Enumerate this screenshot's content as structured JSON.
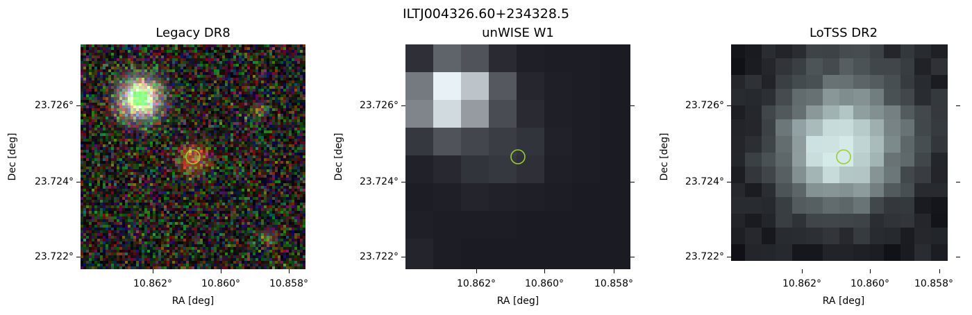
{
  "figure": {
    "suptitle": "ILTJ004326.60+234328.5"
  },
  "panels": [
    {
      "title": "Legacy DR8",
      "style": "legacy",
      "xlabel": "RA [deg]",
      "ylabel": "Dec [deg]",
      "xticks": [
        "10.862°",
        "10.860°",
        "10.858°"
      ],
      "yticks": [
        "23.726°",
        "23.724°",
        "23.722°"
      ],
      "marker_color": "#9acd32"
    },
    {
      "title": "unWISE W1",
      "style": "unwise",
      "xlabel": "RA [deg]",
      "ylabel": "Dec [deg]",
      "xticks": [
        "10.862°",
        "10.860°",
        "10.858°"
      ],
      "yticks": [
        "23.726°",
        "23.724°",
        "23.722°"
      ],
      "marker_color": "#9acd32"
    },
    {
      "title": "LoTSS DR2",
      "style": "lotss",
      "xlabel": "RA [deg]",
      "ylabel": "Dec [deg]",
      "xticks": [
        "10.862°",
        "10.860°",
        "10.858°"
      ],
      "yticks": [
        "23.726°",
        "23.724°",
        "23.722°"
      ],
      "marker_color": "#9acd32"
    }
  ]
}
